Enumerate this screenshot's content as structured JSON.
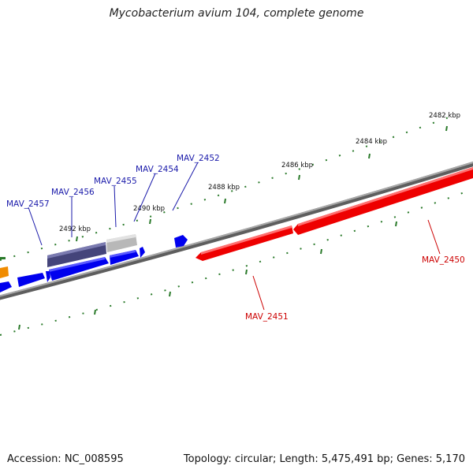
{
  "title": "Mycobacterium avium 104, complete genome",
  "footer": {
    "accession": "Accession: NC_008595",
    "summary": "Topology: circular; Length: 5,475,491 bp; Genes: 5,170"
  },
  "colors": {
    "backbone": "#7a7a7a",
    "tick": "#2a7a2a",
    "forward_gene": "#0000ee",
    "reverse_gene": "#ee0000",
    "highlight_dark": "#4a4a8a",
    "highlight_light": "#b8b8b8",
    "orange_gene": "#f08c00",
    "blue_label": "#1a1aaa",
    "red_label": "#cc0000"
  },
  "ticks": {
    "kbp_labels": [
      "2482 kbp",
      "2484 kbp",
      "2486 kbp",
      "2488 kbp",
      "2490 kbp",
      "2492 kbp"
    ]
  },
  "gene_labels": {
    "mav_2457": "MAV_2457",
    "mav_2456": "MAV_2456",
    "mav_2455": "MAV_2455",
    "mav_2454": "MAV_2454",
    "mav_2452": "MAV_2452",
    "mav_2451": "MAV_2451",
    "mav_2450": "MAV_2450"
  }
}
